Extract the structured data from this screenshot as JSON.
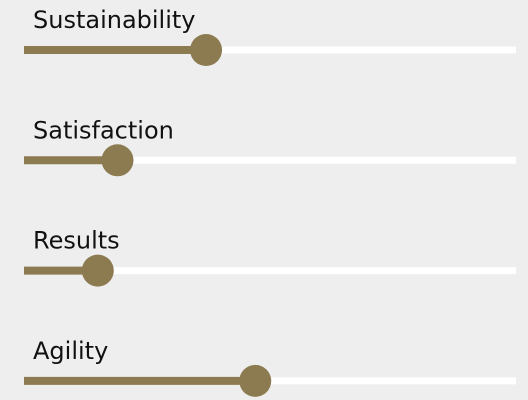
{
  "sliders": {
    "range": [
      0,
      100
    ],
    "color": "#8c7b51",
    "items": [
      {
        "label": "Sustainability",
        "value": 37
      },
      {
        "label": "Satisfaction",
        "value": 19
      },
      {
        "label": "Results",
        "value": 15
      },
      {
        "label": "Agility",
        "value": 47
      }
    ]
  }
}
